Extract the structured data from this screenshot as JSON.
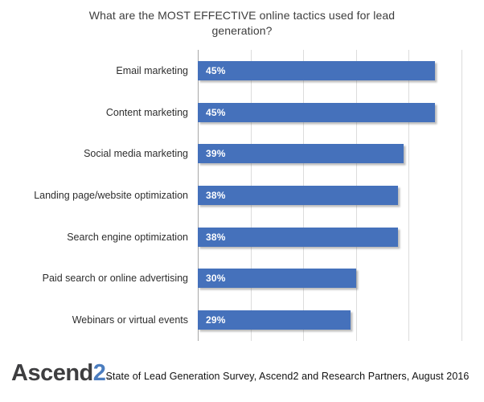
{
  "title": "What are the MOST EFFECTIVE online tactics used for lead generation?",
  "footer": {
    "logo_main": "Ascend",
    "logo_accent": "2",
    "logo_trademark": "™",
    "source": "State of Lead Generation Survey, Ascend2 and Research Partners, August 2016"
  },
  "colors": {
    "bar": "#4571bb",
    "gridline": "#dcdcdc",
    "axis_line": "#a6a6a6",
    "title_text": "#3d3d3d",
    "data_label": "#ffffff",
    "logo_main": "#3e3e40",
    "logo_accent": "#4b7dbf"
  },
  "chart_data": {
    "type": "bar",
    "orientation": "horizontal",
    "title": "What are the MOST EFFECTIVE online tactics used for lead generation?",
    "categories": [
      "Email marketing",
      "Content marketing",
      "Social media marketing",
      "Landing page/website optimization",
      "Search engine optimization",
      "Paid search or online advertising",
      "Webinars or virtual events"
    ],
    "values": [
      45,
      45,
      39,
      38,
      38,
      30,
      29
    ],
    "data_labels": [
      "45%",
      "45%",
      "39%",
      "38%",
      "38%",
      "30%",
      "29%"
    ],
    "xlabel": "",
    "ylabel": "",
    "xlim": [
      0,
      50
    ],
    "tick_interval": 10,
    "grid": true,
    "legend": false
  }
}
